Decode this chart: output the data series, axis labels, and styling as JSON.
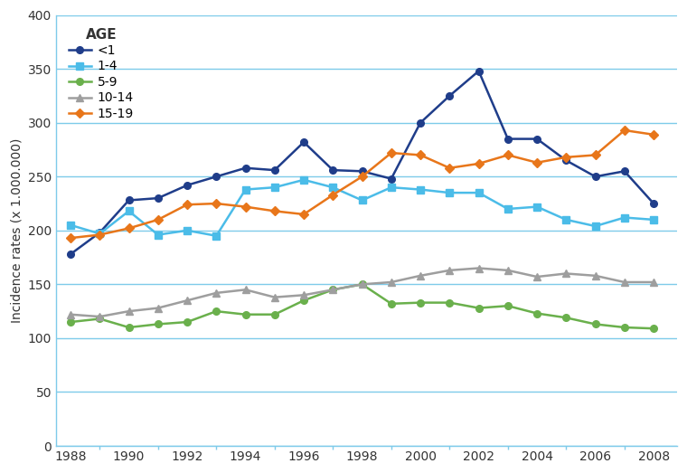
{
  "years": [
    1988,
    1989,
    1990,
    1991,
    1992,
    1993,
    1994,
    1995,
    1996,
    1997,
    1998,
    1999,
    2000,
    2001,
    2002,
    2003,
    2004,
    2005,
    2006,
    2007,
    2008
  ],
  "age_lt1": [
    178,
    198,
    228,
    230,
    242,
    250,
    258,
    256,
    282,
    256,
    255,
    248,
    300,
    325,
    348,
    285,
    285,
    265,
    250,
    255,
    225
  ],
  "age_1_4": [
    205,
    197,
    218,
    196,
    200,
    195,
    238,
    240,
    247,
    240,
    228,
    240,
    238,
    235,
    235,
    220,
    222,
    210,
    204,
    212,
    210
  ],
  "age_5_9": [
    115,
    118,
    110,
    113,
    115,
    125,
    122,
    122,
    135,
    145,
    150,
    132,
    133,
    133,
    128,
    130,
    123,
    119,
    113,
    110,
    109
  ],
  "age_10_14": [
    122,
    120,
    125,
    128,
    135,
    142,
    145,
    138,
    140,
    145,
    150,
    152,
    158,
    163,
    165,
    163,
    157,
    160,
    158,
    152,
    152
  ],
  "age_15_19": [
    193,
    196,
    202,
    210,
    224,
    225,
    222,
    218,
    215,
    233,
    250,
    272,
    270,
    258,
    262,
    270,
    263,
    268,
    270,
    293,
    289
  ],
  "colors": {
    "age_lt1": "#1f3d8a",
    "age_1_4": "#4bbce8",
    "age_5_9": "#6ab04c",
    "age_10_14": "#9e9e9e",
    "age_15_19": "#e8761a"
  },
  "markers": {
    "age_lt1": "o",
    "age_1_4": "s",
    "age_5_9": "o",
    "age_10_14": "^",
    "age_15_19": "D"
  },
  "labels": {
    "age_lt1": "<1",
    "age_1_4": "1-4",
    "age_5_9": "5-9",
    "age_10_14": "10-14",
    "age_15_19": "15-19"
  },
  "ylabel": "Incidence rates (x 1.000.000)",
  "ylim": [
    0,
    400
  ],
  "yticks": [
    0,
    50,
    100,
    150,
    200,
    250,
    300,
    350,
    400
  ],
  "xlim": [
    1987.5,
    2008.8
  ],
  "xticks": [
    1988,
    1990,
    1992,
    1994,
    1996,
    1998,
    2000,
    2002,
    2004,
    2006,
    2008
  ],
  "legend_title": "AGE",
  "bg_color": "#ffffff",
  "grid_color": "#7ecbea",
  "spine_color": "#7ecbea",
  "linewidth": 1.8,
  "markersize": 5.5
}
